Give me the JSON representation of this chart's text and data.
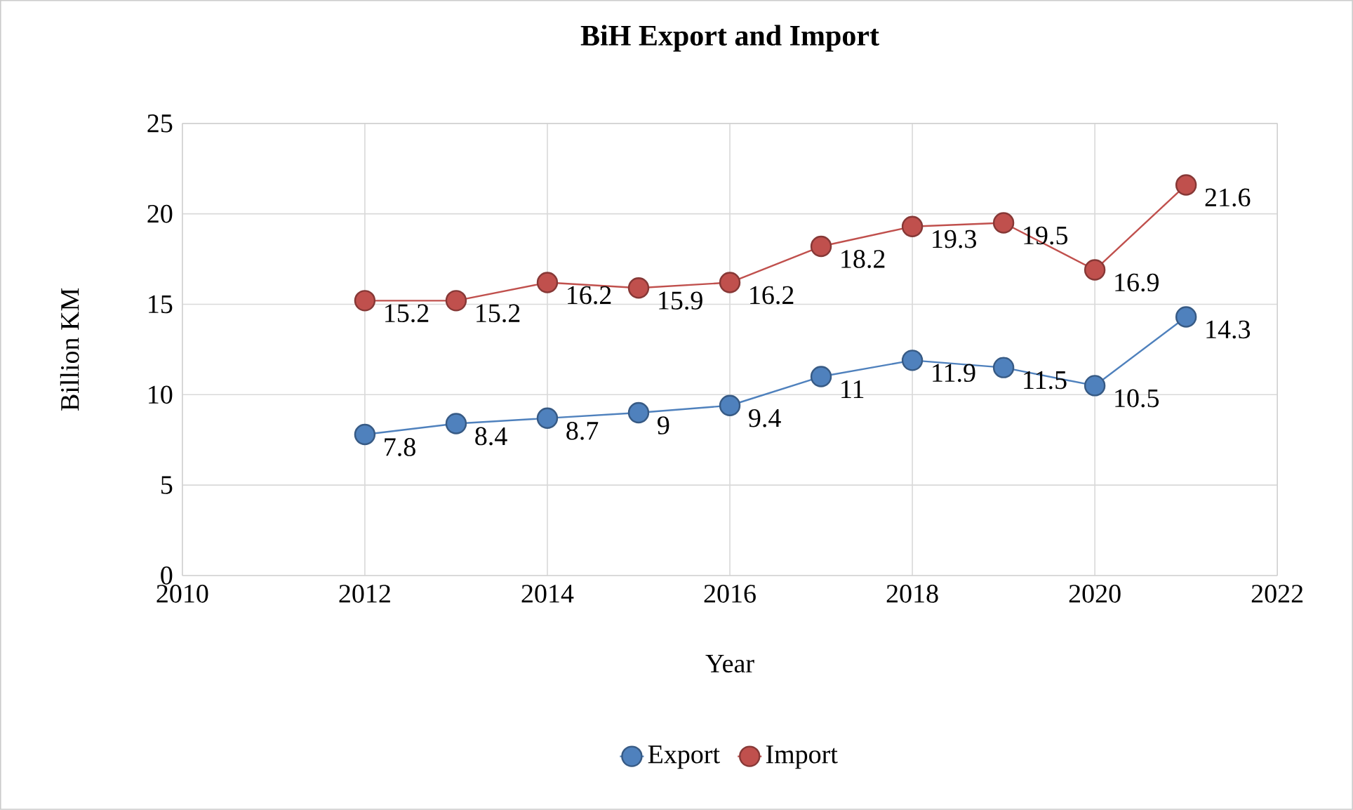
{
  "chart_data": {
    "type": "line",
    "title": "BiH Export and Import",
    "xlabel": "Year",
    "ylabel": "Billion KM",
    "x": [
      2012,
      2013,
      2014,
      2015,
      2016,
      2017,
      2018,
      2019,
      2020,
      2021
    ],
    "series": [
      {
        "name": "Export",
        "color": "#4f81bd",
        "values": [
          7.8,
          8.4,
          8.7,
          9,
          9.4,
          11,
          11.9,
          11.5,
          10.5,
          14.3
        ]
      },
      {
        "name": "Import",
        "color": "#c0504d",
        "values": [
          15.2,
          15.2,
          16.2,
          15.9,
          16.2,
          18.2,
          19.3,
          19.5,
          16.9,
          21.6
        ]
      }
    ],
    "xlim": [
      2010,
      2022
    ],
    "xticks": [
      2010,
      2012,
      2014,
      2016,
      2018,
      2020,
      2022
    ],
    "ylim": [
      0,
      25
    ],
    "yticks": [
      0,
      5,
      10,
      15,
      20,
      25
    ],
    "grid": true,
    "legend": "bottom",
    "marker": "circle",
    "line_style": "solid",
    "data_labels": true
  }
}
